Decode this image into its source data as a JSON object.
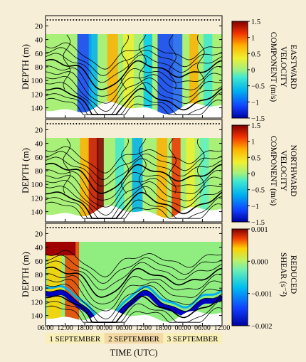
{
  "chart_data": [
    {
      "type": "heatmap",
      "ylabel": "DEPTH (m)",
      "yticks": [
        "20",
        "40",
        "60",
        "80",
        "100",
        "120",
        "140"
      ],
      "ylim": [
        5,
        155
      ],
      "colorbar_label": "EASTWARD VELOCITY COMPONENT (m/s)",
      "colorbar_ticks": [
        "1.5",
        "1",
        "0.5",
        "0",
        "−0.5",
        "−1",
        "−1.5"
      ],
      "clim": [
        -1.5,
        1.5
      ]
    },
    {
      "type": "heatmap",
      "ylabel": "DEPTH (m)",
      "yticks": [
        "20",
        "40",
        "60",
        "80",
        "100",
        "120",
        "140"
      ],
      "ylim": [
        5,
        155
      ],
      "colorbar_label": "NORTHWARD VELOCITY COMPONENT (m/s)",
      "colorbar_ticks": [
        "1.5",
        "1",
        "0.5",
        "0",
        "−0.5",
        "−1",
        "−1.5"
      ],
      "clim": [
        -1.5,
        1.5
      ]
    },
    {
      "type": "heatmap",
      "ylabel": "DEPTH (m)",
      "yticks": [
        "20",
        "40",
        "60",
        "80",
        "100",
        "120",
        "140"
      ],
      "ylim": [
        5,
        155
      ],
      "colorbar_label": "REDUCED SHEAR (s⁻²)",
      "colorbar_ticks": [
        "0.001",
        "0.000",
        "−0.001",
        "−0.002"
      ],
      "clim": [
        -0.002,
        0.001
      ]
    }
  ],
  "xaxis": {
    "label": "TIME (UTC)",
    "ticks": [
      "06:00",
      "12:00",
      "18:00",
      "00:00",
      "06:00",
      "12:00",
      "18:00",
      "00:00",
      "06:00",
      "12:00"
    ],
    "days": [
      "1 SEPTEMBER",
      "2 SEPTEMBER",
      "3 SEPTEMBER"
    ]
  },
  "colors": {
    "background": "#f7eed8",
    "day_band_light": "#f9efb8",
    "day_band_dark": "#f3d9a3",
    "colormap": [
      "#0000c8",
      "#2060ff",
      "#00c8f0",
      "#60f0c0",
      "#c0f060",
      "#ffd000",
      "#ff6000",
      "#d01000",
      "#800000"
    ]
  }
}
